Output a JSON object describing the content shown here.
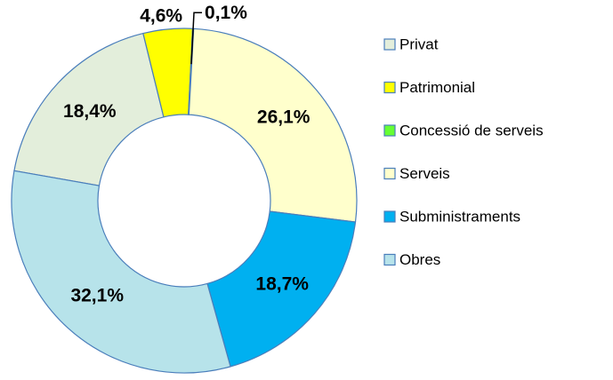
{
  "chart_data": {
    "type": "donut",
    "categories": [
      "Privat",
      "Patrimonial",
      "Concessió de serveis",
      "Serveis",
      "Subministraments",
      "Obres"
    ],
    "values": [
      18.4,
      4.6,
      0.1,
      26.1,
      18.7,
      32.1
    ],
    "value_labels": [
      "18,4%",
      "4,6%",
      "0,1%",
      "26,1%",
      "18,7%",
      "32,1%"
    ],
    "colors": [
      "#e3eedb",
      "#ffff00",
      "#66ff33",
      "#ffffcc",
      "#00b0f0",
      "#b7e3ea"
    ],
    "legend": "right"
  }
}
